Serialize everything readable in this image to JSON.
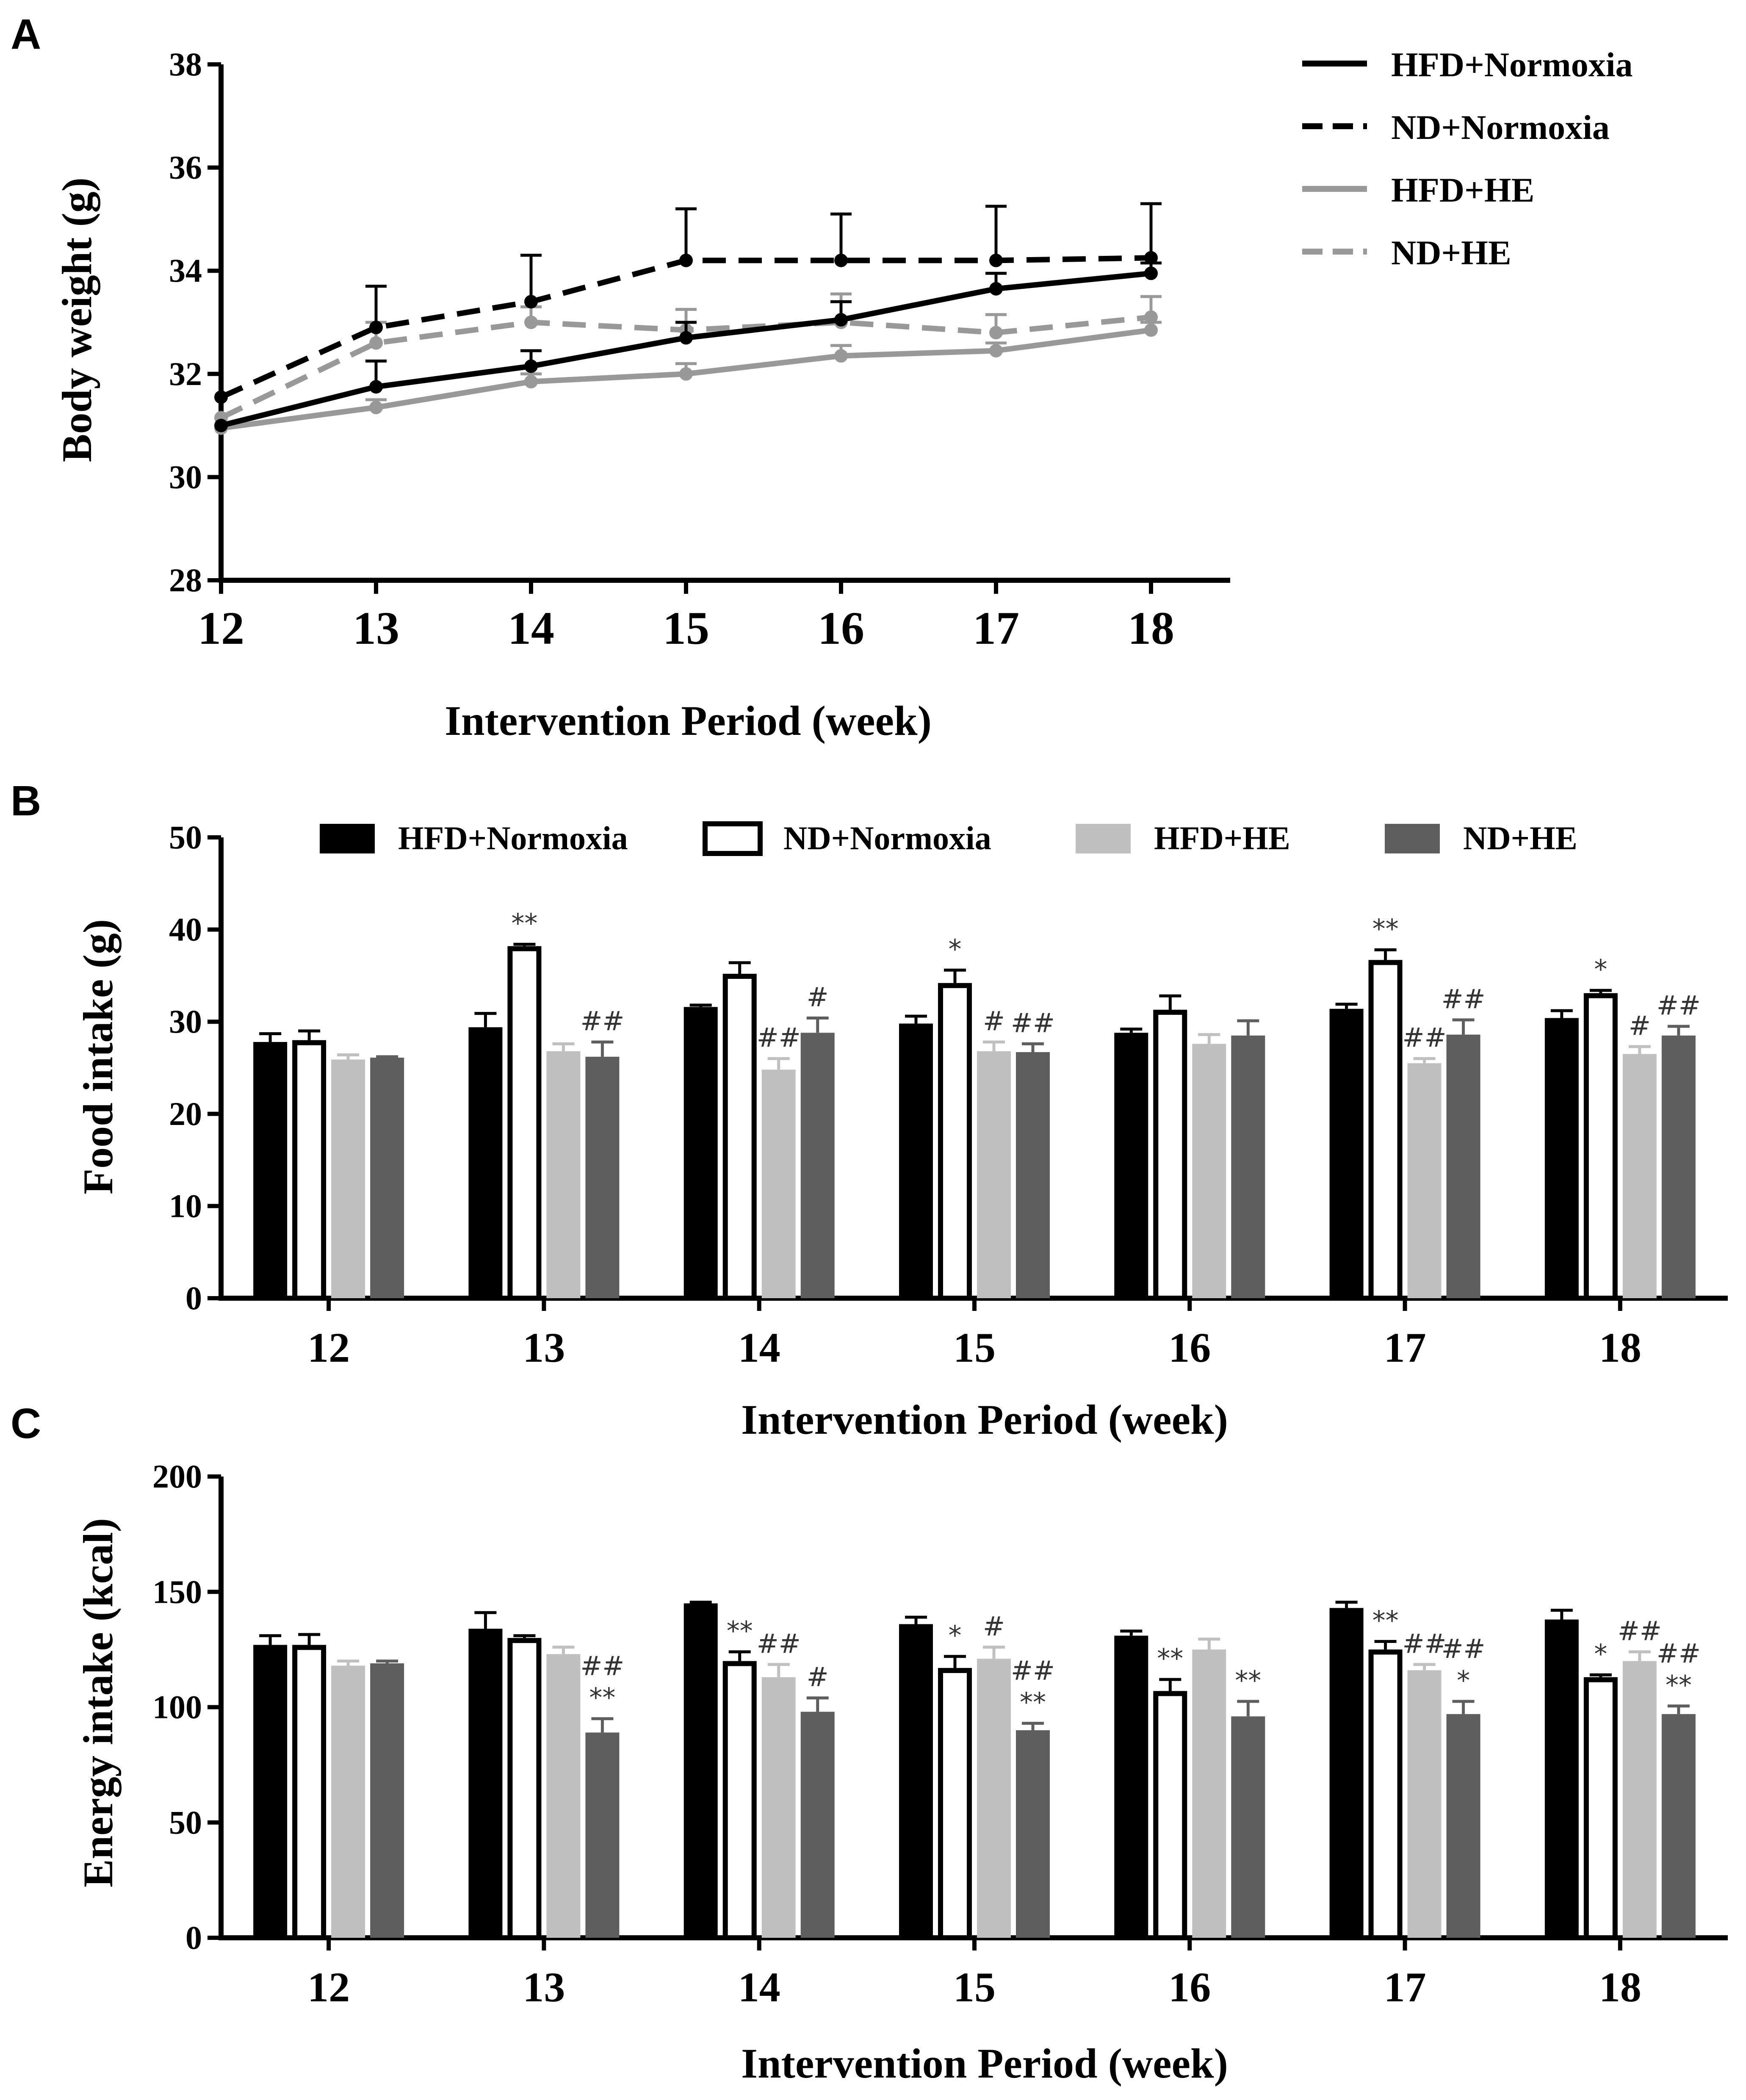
{
  "panels": [
    {
      "letter": "A"
    },
    {
      "letter": "B"
    },
    {
      "letter": "C"
    }
  ],
  "chart_data": [
    {
      "panel": "A",
      "type": "line",
      "title": "",
      "xlabel": "Intervention Period (week)",
      "ylabel": "Body weight (g)",
      "x": [
        12,
        13,
        14,
        15,
        16,
        17,
        18
      ],
      "xlim": [
        12,
        18.5
      ],
      "ylim": [
        28,
        38
      ],
      "yticks": [
        28,
        30,
        32,
        34,
        36,
        38
      ],
      "legend_position": "top-right",
      "series": [
        {
          "name": "HFD+Normoxia",
          "color": "#000000",
          "dash": "solid",
          "values": [
            31.0,
            31.75,
            32.15,
            32.7,
            33.05,
            33.65,
            33.95
          ],
          "errors": [
            0.0,
            0.5,
            0.3,
            0.3,
            0.35,
            0.3,
            0.2
          ]
        },
        {
          "name": "ND+Normoxia",
          "color": "#000000",
          "dash": "dashed",
          "values": [
            31.55,
            32.9,
            33.4,
            34.2,
            34.2,
            34.2,
            34.25
          ],
          "errors": [
            0.0,
            0.8,
            0.9,
            1.0,
            0.9,
            1.05,
            1.05
          ]
        },
        {
          "name": "HFD+HE",
          "color": "#999999",
          "dash": "solid",
          "values": [
            30.95,
            31.35,
            31.85,
            32.0,
            32.35,
            32.45,
            32.85
          ],
          "errors": [
            0.0,
            0.15,
            0.15,
            0.2,
            0.2,
            0.15,
            0.15
          ]
        },
        {
          "name": "ND+HE",
          "color": "#999999",
          "dash": "dashed",
          "values": [
            31.15,
            32.6,
            33.0,
            32.85,
            33.0,
            32.8,
            33.1
          ],
          "errors": [
            0.0,
            0.4,
            0.3,
            0.4,
            0.55,
            0.35,
            0.4
          ]
        }
      ]
    },
    {
      "panel": "B",
      "type": "bar",
      "title": "",
      "xlabel": "Intervention Period (week)",
      "ylabel": "Food intake (g)",
      "categories": [
        "12",
        "13",
        "14",
        "15",
        "16",
        "17",
        "18"
      ],
      "ylim": [
        0,
        50
      ],
      "yticks": [
        0,
        10,
        20,
        30,
        40,
        50
      ],
      "legend_position": "top",
      "series": [
        {
          "name": "HFD+Normoxia",
          "fill": "#000000",
          "stroke": "#000000",
          "values": [
            27.8,
            29.4,
            31.6,
            29.8,
            28.8,
            31.4,
            30.4
          ],
          "errors": [
            0.9,
            1.5,
            0.2,
            0.8,
            0.4,
            0.5,
            0.8
          ]
        },
        {
          "name": "ND+Normoxia",
          "fill": "#ffffff",
          "stroke": "#000000",
          "values": [
            28.0,
            38.2,
            35.2,
            34.2,
            31.3,
            36.7,
            33.1
          ],
          "errors": [
            1.0,
            0.2,
            1.2,
            1.4,
            1.5,
            1.1,
            0.3
          ]
        },
        {
          "name": "HFD+HE",
          "fill": "#c0c0c0",
          "stroke": "#c0c0c0",
          "values": [
            25.9,
            26.8,
            24.8,
            26.8,
            27.6,
            25.5,
            26.5
          ],
          "errors": [
            0.5,
            0.8,
            1.2,
            1.0,
            1.0,
            0.5,
            0.8
          ]
        },
        {
          "name": "ND+HE",
          "fill": "#5e5e5e",
          "stroke": "#5e5e5e",
          "values": [
            26.1,
            26.2,
            28.8,
            26.7,
            28.5,
            28.6,
            28.5
          ],
          "errors": [
            0.1,
            1.6,
            1.6,
            0.9,
            1.6,
            1.6,
            1.0
          ]
        }
      ],
      "annotations": [
        {
          "category": 1,
          "series": 1,
          "text": "**"
        },
        {
          "category": 1,
          "series": 3,
          "text": "##"
        },
        {
          "category": 2,
          "series": 2,
          "text": "##"
        },
        {
          "category": 2,
          "series": 3,
          "text": "#"
        },
        {
          "category": 3,
          "series": 1,
          "text": "*"
        },
        {
          "category": 3,
          "series": 2,
          "text": "#"
        },
        {
          "category": 3,
          "series": 3,
          "text": "##"
        },
        {
          "category": 5,
          "series": 1,
          "text": "**"
        },
        {
          "category": 5,
          "series": 2,
          "text": "##"
        },
        {
          "category": 5,
          "series": 3,
          "text": "##"
        },
        {
          "category": 6,
          "series": 1,
          "text": "*"
        },
        {
          "category": 6,
          "series": 2,
          "text": "#"
        },
        {
          "category": 6,
          "series": 3,
          "text": "##"
        }
      ]
    },
    {
      "panel": "C",
      "type": "bar",
      "title": "",
      "xlabel": "Intervention Period (week)",
      "ylabel": "Energy intake (kcal)",
      "categories": [
        "12",
        "13",
        "14",
        "15",
        "16",
        "17",
        "18"
      ],
      "ylim": [
        0,
        200
      ],
      "yticks": [
        0,
        50,
        100,
        150,
        200
      ],
      "legend_position": "none",
      "series": [
        {
          "name": "HFD+Normoxia",
          "fill": "#000000",
          "stroke": "#000000",
          "values": [
            127,
            134,
            145,
            136,
            131,
            143,
            138
          ],
          "errors": [
            4,
            7,
            0.5,
            3,
            2,
            2.5,
            4
          ]
        },
        {
          "name": "ND+Normoxia",
          "fill": "#ffffff",
          "stroke": "#000000",
          "values": [
            127,
            130,
            120,
            117,
            107,
            125,
            113
          ],
          "errors": [
            4.5,
            1,
            4,
            5,
            5,
            3.5,
            1
          ]
        },
        {
          "name": "HFD+HE",
          "fill": "#c0c0c0",
          "stroke": "#c0c0c0",
          "values": [
            118,
            123,
            113,
            121,
            125,
            116,
            120
          ],
          "errors": [
            2,
            3,
            5.5,
            5,
            4.5,
            2.5,
            4
          ]
        },
        {
          "name": "ND+HE",
          "fill": "#5e5e5e",
          "stroke": "#5e5e5e",
          "values": [
            119,
            89,
            98,
            90,
            96,
            97,
            97
          ],
          "errors": [
            1,
            6,
            6,
            3,
            6.5,
            5.5,
            3.5
          ]
        }
      ],
      "annotations": [
        {
          "category": 1,
          "series": 3,
          "text": "##",
          "line": 0
        },
        {
          "category": 1,
          "series": 3,
          "text": "**",
          "line": 1
        },
        {
          "category": 2,
          "series": 1,
          "text": "**",
          "line": 0
        },
        {
          "category": 2,
          "series": 2,
          "text": "##",
          "line": 0
        },
        {
          "category": 2,
          "series": 3,
          "text": "#",
          "line": 0
        },
        {
          "category": 3,
          "series": 1,
          "text": "*",
          "line": 0
        },
        {
          "category": 3,
          "series": 2,
          "text": "#",
          "line": 0
        },
        {
          "category": 3,
          "series": 3,
          "text": "##",
          "line": 0
        },
        {
          "category": 3,
          "series": 3,
          "text": "**",
          "line": 1
        },
        {
          "category": 4,
          "series": 1,
          "text": "**",
          "line": 0
        },
        {
          "category": 4,
          "series": 3,
          "text": "**",
          "line": 0
        },
        {
          "category": 5,
          "series": 1,
          "text": "**",
          "line": 0
        },
        {
          "category": 5,
          "series": 2,
          "text": "##",
          "line": 0
        },
        {
          "category": 5,
          "series": 3,
          "text": "##",
          "line": 0
        },
        {
          "category": 5,
          "series": 3,
          "text": "*",
          "line": 1
        },
        {
          "category": 6,
          "series": 1,
          "text": "*",
          "line": 0
        },
        {
          "category": 6,
          "series": 2,
          "text": "##",
          "line": 0
        },
        {
          "category": 6,
          "series": 3,
          "text": "##",
          "line": 0
        },
        {
          "category": 6,
          "series": 3,
          "text": "**",
          "line": 1
        }
      ]
    }
  ]
}
